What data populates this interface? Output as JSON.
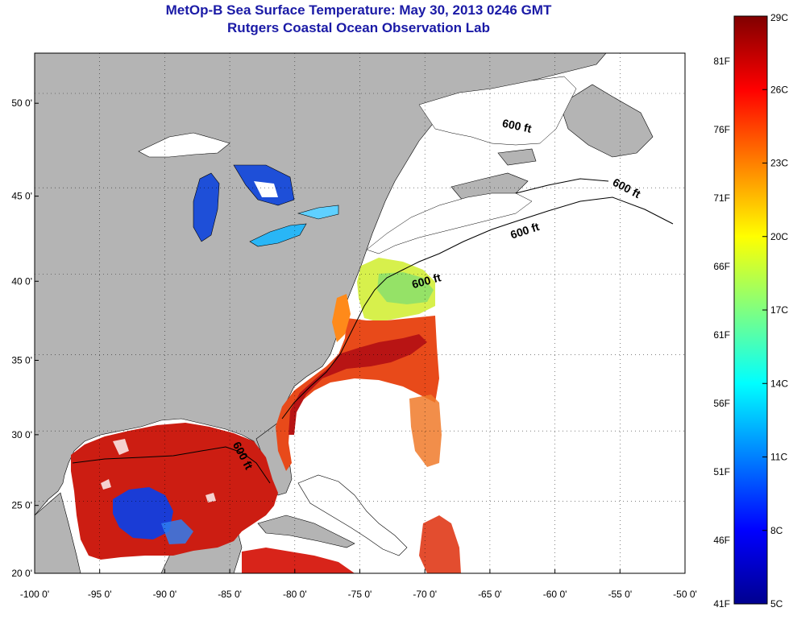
{
  "title": {
    "line1": "MetOp-B Sea Surface Temperature:  May 30, 2013 0246 GMT",
    "line2": "Rutgers Coastal Ocean Observation Lab"
  },
  "map": {
    "lon_range": [
      -100,
      -50
    ],
    "lat_range": [
      20,
      52.5
    ],
    "lon_ticks": [
      {
        "value": -100,
        "label": "-100 0'"
      },
      {
        "value": -95,
        "label": "-95 0'"
      },
      {
        "value": -90,
        "label": "-90 0'"
      },
      {
        "value": -85,
        "label": "-85 0'"
      },
      {
        "value": -80,
        "label": "-80 0'"
      },
      {
        "value": -75,
        "label": "-75 0'"
      },
      {
        "value": -70,
        "label": "-70 0'"
      },
      {
        "value": -65,
        "label": "-65 0'"
      },
      {
        "value": -60,
        "label": "-60 0'"
      },
      {
        "value": -55,
        "label": "-55 0'"
      },
      {
        "value": -50,
        "label": "-50 0'"
      }
    ],
    "lat_ticks": [
      {
        "value": 20,
        "label": "20 0'"
      },
      {
        "value": 25,
        "label": "25 0'"
      },
      {
        "value": 30,
        "label": "30 0'"
      },
      {
        "value": 35,
        "label": "35 0'"
      },
      {
        "value": 40,
        "label": "40 0'"
      },
      {
        "value": 45,
        "label": "45 0'"
      },
      {
        "value": 50,
        "label": "50 0'"
      }
    ],
    "contour_labels": [
      "600 ft",
      "600 ft",
      "600 ft",
      "600 ft",
      "600 ft"
    ],
    "land_color": "#b4b4b4",
    "ocean_nodata_color": "#ffffff"
  },
  "colorbar": {
    "celsius_labels": [
      "29C",
      "26C",
      "23C",
      "20C",
      "17C",
      "14C",
      "11C",
      "8C",
      "5C"
    ],
    "fahrenheit_labels": [
      "81F",
      "76F",
      "71F",
      "66F",
      "61F",
      "56F",
      "51F",
      "46F",
      "41F"
    ],
    "colors_top_to_bottom": [
      "#800000",
      "#ff0000",
      "#ff8000",
      "#ffff00",
      "#80ff80",
      "#00ffff",
      "#0080ff",
      "#0000ff",
      "#00008f"
    ]
  }
}
